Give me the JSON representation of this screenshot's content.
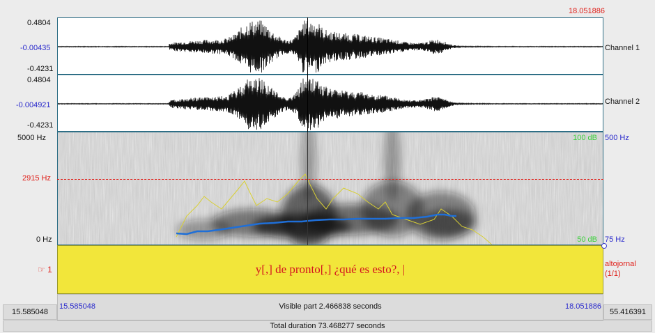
{
  "cursor_time_top": "18.051886",
  "channel1": {
    "max": "0.4804",
    "mid": "-0.00435",
    "min": "-0.4231",
    "name": "Channel 1"
  },
  "channel2": {
    "max": "0.4804",
    "mid": "-0.004921",
    "min": "-0.4231",
    "name": "Channel 2"
  },
  "spectrogram": {
    "top_freq": "5000 Hz",
    "cursor_freq": "2915 Hz",
    "bottom_freq": "0 Hz",
    "intensity_top": "100 dB",
    "intensity_bottom": "50 dB",
    "pitch_top": "500 Hz",
    "pitch_bottom": "75 Hz"
  },
  "tier": {
    "number": "1",
    "marker": "☞",
    "text": "y[,] de pronto[,] ¿qué es esto?, |",
    "name": "altojornal",
    "count": "(1/1)"
  },
  "visible": {
    "start": "15.585048",
    "end": "18.051886",
    "label": "Visible part 2.466838 seconds"
  },
  "window_left": "15.585048",
  "window_right": "55.416391",
  "total": "Total duration 73.468277 seconds",
  "colors": {
    "pitch": "#1f6fd8",
    "intensity": "#d8cf35",
    "tier_bg": "#f2e63a",
    "tier_text": "#d4161f"
  }
}
